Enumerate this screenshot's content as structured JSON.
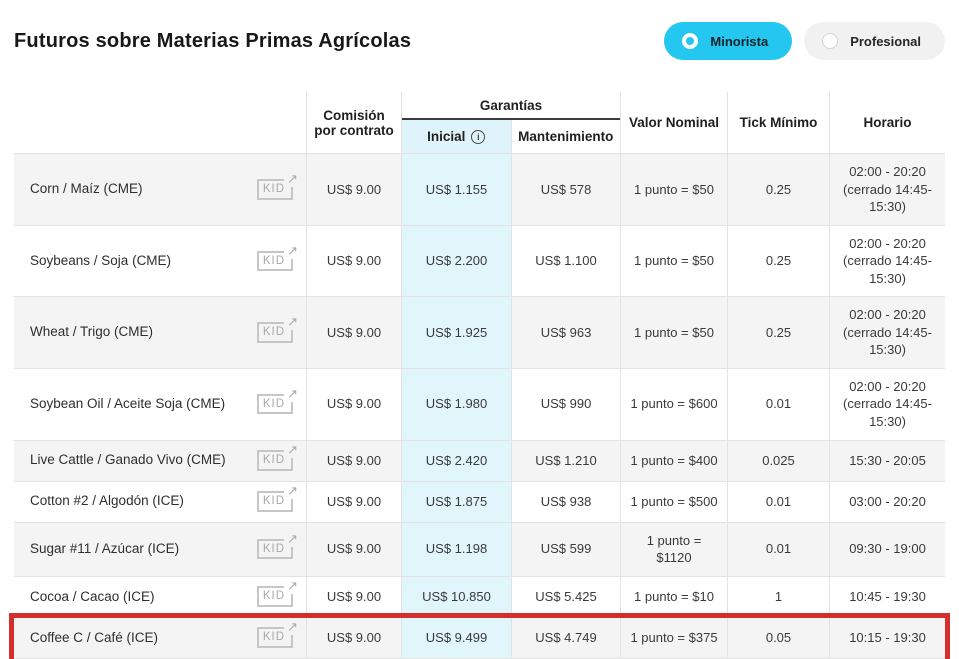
{
  "page": {
    "title": "Futuros sobre Materias Primas Agrícolas"
  },
  "toggle": {
    "minorista": {
      "label": "Minorista",
      "selected": true
    },
    "profesional": {
      "label": "Profesional",
      "selected": false
    }
  },
  "icons": {
    "info": "i",
    "external_link": "↗"
  },
  "colors": {
    "accent": "#24c7f0",
    "initial_column_bg": "#e1f6fb",
    "initial_header_bg": "#dff4fa",
    "row_alt_bg": "#f4f4f4",
    "highlight_border": "#d42f2c",
    "kid_gray": "#a9a9a9"
  },
  "table": {
    "kid_label": "KID",
    "headers": {
      "commission": "Comisión por contrato",
      "guarantees": "Garantías",
      "initial": "Inicial",
      "maintenance": "Mantenimiento",
      "nominal": "Valor Nominal",
      "tick": "Tick Mínimo",
      "schedule": "Horario"
    },
    "rows": [
      {
        "name": "Corn / Maíz (CME)",
        "commission": "US$ 9.00",
        "initial": "US$ 1.155",
        "maintenance": "US$ 578",
        "nominal": "1 punto = $50",
        "tick": "0.25",
        "schedule": "02:00 - 20:20 (cerrado 14:45-15:30)",
        "highlighted": false
      },
      {
        "name": "Soybeans / Soja (CME)",
        "commission": "US$ 9.00",
        "initial": "US$ 2.200",
        "maintenance": "US$ 1.100",
        "nominal": "1 punto = $50",
        "tick": "0.25",
        "schedule": "02:00 - 20:20 (cerrado 14:45-15:30)",
        "highlighted": false
      },
      {
        "name": "Wheat / Trigo (CME)",
        "commission": "US$ 9.00",
        "initial": "US$ 1.925",
        "maintenance": "US$ 963",
        "nominal": "1 punto = $50",
        "tick": "0.25",
        "schedule": "02:00 - 20:20 (cerrado 14:45-15:30)",
        "highlighted": false
      },
      {
        "name": "Soybean Oil / Aceite Soja (CME)",
        "commission": "US$ 9.00",
        "initial": "US$ 1.980",
        "maintenance": "US$ 990",
        "nominal": "1 punto = $600",
        "tick": "0.01",
        "schedule": "02:00 - 20:20 (cerrado 14:45-15:30)",
        "highlighted": false
      },
      {
        "name": "Live Cattle / Ganado Vivo (CME)",
        "commission": "US$ 9.00",
        "initial": "US$ 2.420",
        "maintenance": "US$ 1.210",
        "nominal": "1 punto = $400",
        "tick": "0.025",
        "schedule": "15:30 - 20:05",
        "highlighted": false
      },
      {
        "name": "Cotton #2 / Algodón (ICE)",
        "commission": "US$ 9.00",
        "initial": "US$ 1.875",
        "maintenance": "US$ 938",
        "nominal": "1 punto = $500",
        "tick": "0.01",
        "schedule": "03:00 - 20:20",
        "highlighted": false
      },
      {
        "name": "Sugar #11 / Azúcar (ICE)",
        "commission": "US$ 9.00",
        "initial": "US$ 1.198",
        "maintenance": "US$ 599",
        "nominal": "1 punto = $1120",
        "tick": "0.01",
        "schedule": "09:30 - 19:00",
        "highlighted": false
      },
      {
        "name": "Cocoa / Cacao (ICE)",
        "commission": "US$ 9.00",
        "initial": "US$ 10.850",
        "maintenance": "US$ 5.425",
        "nominal": "1 punto = $10",
        "tick": "1",
        "schedule": "10:45 - 19:30",
        "highlighted": false
      },
      {
        "name": "Coffee C / Café (ICE)",
        "commission": "US$ 9.00",
        "initial": "US$ 9.499",
        "maintenance": "US$ 4.749",
        "nominal": "1 punto = $375",
        "tick": "0.05",
        "schedule": "10:15 - 19:30",
        "highlighted": true
      }
    ]
  }
}
